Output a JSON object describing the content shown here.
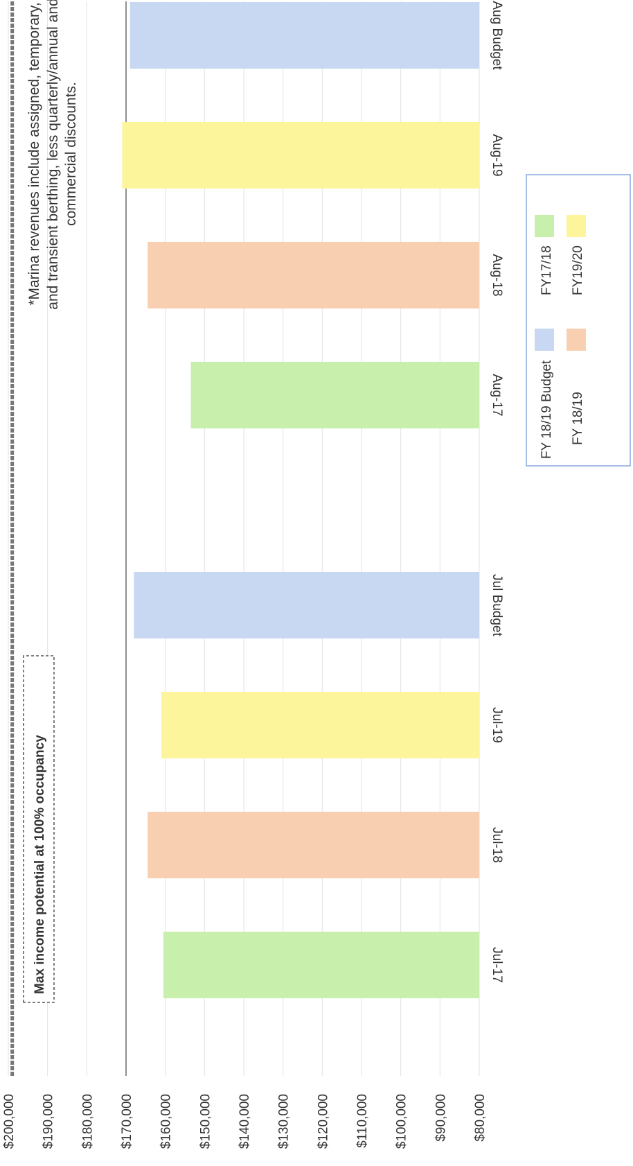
{
  "chart_data": {
    "type": "bar",
    "categories": [
      "Jul-17",
      "Jul-18",
      "Jul-19",
      "Jul Budget",
      "Aug-17",
      "Aug-18",
      "Aug-19",
      "Aug Budget"
    ],
    "values": [
      160500,
      164500,
      161000,
      168000,
      153500,
      164500,
      171000,
      169000
    ],
    "bar_colors": [
      "#c9efad",
      "#f8cfb1",
      "#fdf59c",
      "#c8d8f2",
      "#c9efad",
      "#f8cfb1",
      "#fdf59c",
      "#c8d8f2"
    ],
    "ylim": [
      80000,
      200000
    ],
    "ticks": [
      {
        "value": 80000,
        "label": "$80,000"
      },
      {
        "value": 90000,
        "label": "$90,000"
      },
      {
        "value": 100000,
        "label": "$100,000"
      },
      {
        "value": 110000,
        "label": "$110,000"
      },
      {
        "value": 120000,
        "label": "$120,000"
      },
      {
        "value": 130000,
        "label": "$130,000"
      },
      {
        "value": 140000,
        "label": "$140,000"
      },
      {
        "value": 150000,
        "label": "$150,000"
      },
      {
        "value": 160000,
        "label": "$160,000"
      },
      {
        "value": 170000,
        "label": "$170,000"
      },
      {
        "value": 180000,
        "label": "$180,000"
      },
      {
        "value": 190000,
        "label": "$190,000"
      },
      {
        "value": 200000,
        "label": "$200,000"
      }
    ],
    "grid": true,
    "max_income_line": 199000,
    "reference_line": 170000,
    "annotation_max": "Max income potential at 100% occupancy",
    "note_lines": [
      "*Marina revenues include assigned,  temporary,",
      "and transient berthing, less quarterly/annual and",
      "commercial discounts."
    ],
    "legend": [
      {
        "label": "FY 18/19 Budget",
        "color": "#c8d8f2"
      },
      {
        "label": "FY17/18",
        "color": "#c9efad"
      },
      {
        "label": "FY 18/19",
        "color": "#f8cfb1"
      },
      {
        "label": "FY19/20",
        "color": "#fdf59c"
      }
    ],
    "legend_position": "bottom-right"
  }
}
